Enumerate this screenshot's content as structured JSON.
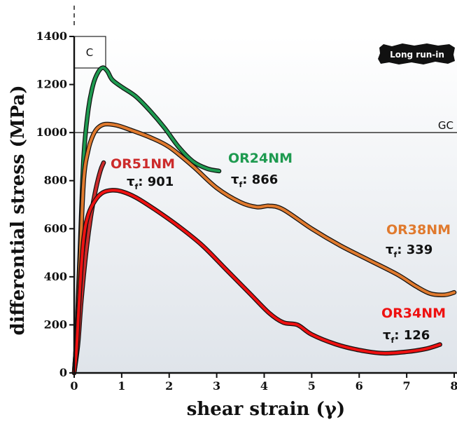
{
  "chart_data": {
    "type": "line",
    "xlabel": "shear strain (γ)",
    "ylabel": "differential stress (MPa)",
    "xlim": [
      0,
      8
    ],
    "ylim": [
      0,
      1400
    ],
    "xticks": [
      0,
      1,
      2,
      3,
      4,
      5,
      6,
      7,
      8
    ],
    "yticks": [
      0,
      200,
      400,
      600,
      800,
      1000,
      1200,
      1400
    ],
    "panel_label": "C",
    "condition_badge": "Long run-in",
    "reference_line": {
      "label": "GC",
      "y": 1000
    },
    "grid": false,
    "series": [
      {
        "name": "OR24NM",
        "tau_prefix": "τ",
        "tau_sub": "f",
        "tau_value": ": 866",
        "color": "#1e9a50",
        "points": [
          [
            0,
            0
          ],
          [
            0.05,
            150
          ],
          [
            0.12,
            500
          ],
          [
            0.2,
            900
          ],
          [
            0.3,
            1100
          ],
          [
            0.4,
            1200
          ],
          [
            0.5,
            1250
          ],
          [
            0.6,
            1270
          ],
          [
            0.7,
            1255
          ],
          [
            0.8,
            1220
          ],
          [
            1.0,
            1190
          ],
          [
            1.3,
            1150
          ],
          [
            1.6,
            1090
          ],
          [
            1.9,
            1020
          ],
          [
            2.2,
            940
          ],
          [
            2.5,
            880
          ],
          [
            2.8,
            850
          ],
          [
            3.05,
            840
          ]
        ]
      },
      {
        "name": "OR38NM",
        "tau_prefix": "τ",
        "tau_sub": "f",
        "tau_value": ": 339",
        "color": "#e07a2e",
        "points": [
          [
            0,
            0
          ],
          [
            0.05,
            150
          ],
          [
            0.12,
            450
          ],
          [
            0.2,
            800
          ],
          [
            0.3,
            930
          ],
          [
            0.4,
            990
          ],
          [
            0.5,
            1020
          ],
          [
            0.65,
            1035
          ],
          [
            0.9,
            1030
          ],
          [
            1.2,
            1010
          ],
          [
            1.6,
            980
          ],
          [
            2.0,
            940
          ],
          [
            2.5,
            860
          ],
          [
            3.0,
            770
          ],
          [
            3.5,
            710
          ],
          [
            3.85,
            690
          ],
          [
            4.1,
            695
          ],
          [
            4.4,
            680
          ],
          [
            5.0,
            600
          ],
          [
            5.6,
            530
          ],
          [
            6.2,
            470
          ],
          [
            6.8,
            410
          ],
          [
            7.2,
            360
          ],
          [
            7.5,
            330
          ],
          [
            7.8,
            325
          ],
          [
            8.0,
            335
          ]
        ]
      },
      {
        "name": "OR51NM",
        "tau_prefix": "τ",
        "tau_sub": "f",
        "tau_value": ": 901",
        "color": "#cc2b2b",
        "points": [
          [
            0,
            0
          ],
          [
            0.08,
            120
          ],
          [
            0.15,
            300
          ],
          [
            0.25,
            500
          ],
          [
            0.35,
            650
          ],
          [
            0.45,
            760
          ],
          [
            0.55,
            840
          ],
          [
            0.62,
            875
          ]
        ]
      },
      {
        "name": "OR34NM",
        "tau_prefix": "τ",
        "tau_sub": "f",
        "tau_value": ": 126",
        "color": "#ee1111",
        "points": [
          [
            0,
            0
          ],
          [
            0.05,
            100
          ],
          [
            0.12,
            350
          ],
          [
            0.2,
            560
          ],
          [
            0.3,
            660
          ],
          [
            0.45,
            720
          ],
          [
            0.6,
            750
          ],
          [
            0.8,
            760
          ],
          [
            1.0,
            755
          ],
          [
            1.3,
            730
          ],
          [
            1.7,
            680
          ],
          [
            2.2,
            610
          ],
          [
            2.7,
            530
          ],
          [
            3.2,
            430
          ],
          [
            3.7,
            330
          ],
          [
            4.1,
            250
          ],
          [
            4.4,
            210
          ],
          [
            4.7,
            200
          ],
          [
            5.0,
            160
          ],
          [
            5.5,
            120
          ],
          [
            6.0,
            95
          ],
          [
            6.5,
            82
          ],
          [
            7.0,
            88
          ],
          [
            7.4,
            100
          ],
          [
            7.7,
            118
          ]
        ]
      }
    ]
  }
}
